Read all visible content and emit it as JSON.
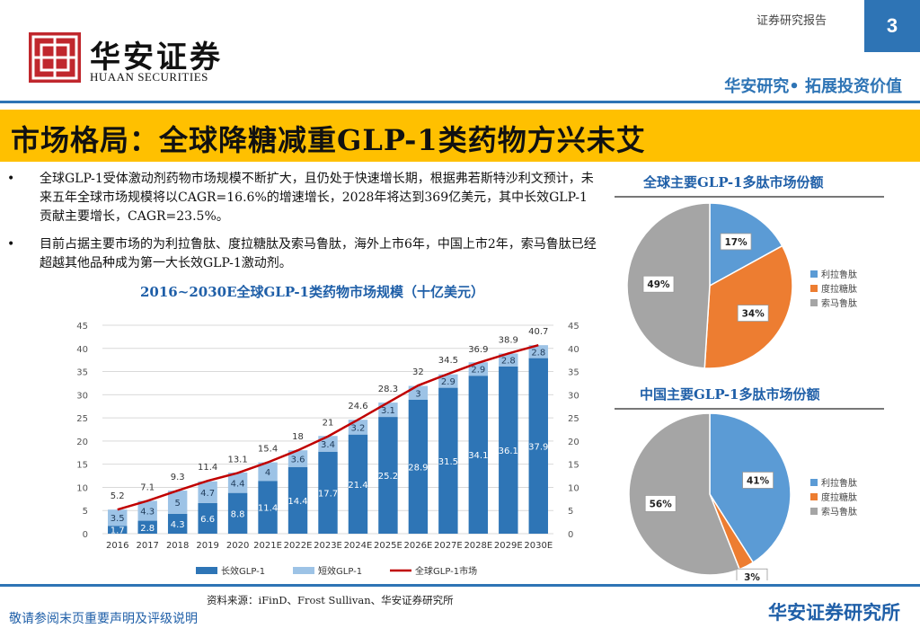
{
  "header": {
    "logo_cn": "华安证券",
    "logo_en": "HUAAN SECURITIES",
    "report_type": "证券研究报告",
    "page_number": "3",
    "slogan": "华安研究• 拓展投资价值",
    "brand_red": "#c0272d",
    "brand_blue": "#2e74b5",
    "accent_yellow": "#ffc000"
  },
  "title": "市场格局：全球降糖减重GLP-1类药物方兴未艾",
  "bullets": [
    "全球GLP-1受体激动剂药物市场规模不断扩大，且仍处于快速增长期，根据弗若斯特沙利文预计，未来五年全球市场规模将以CAGR=16.6%的增速增长，2028年将达到369亿美元，其中长效GLP-1贡献主要增长，CAGR=23.5%。",
    "目前占据主要市场的为利拉鲁肽、度拉糖肽及索马鲁肽，海外上市6年，中国上市2年，索马鲁肽已经超越其他品种成为第一大长效GLP-1激动剂。"
  ],
  "bullet_symbol": "•",
  "source": "资料来源：iFinD、Frost Sullivan、华安证券研究所",
  "footer": {
    "disclaimer": "敬请参阅末页重要声明及评级说明",
    "institute": "华安证券研究所"
  },
  "chart_data": [
    {
      "type": "bar",
      "stacked": true,
      "title": "2016~2030E全球GLP-1类药物市场规模（十亿美元）",
      "categories": [
        "2016",
        "2017",
        "2018",
        "2019",
        "2020",
        "2021E",
        "2022E",
        "2023E",
        "2024E",
        "2025E",
        "2026E",
        "2027E",
        "2028E",
        "2029E",
        "2030E"
      ],
      "series": [
        {
          "name": "长效GLP-1",
          "color": "#2e75b6",
          "values": [
            1.7,
            2.8,
            4.3,
            6.6,
            8.8,
            11.4,
            14.4,
            17.7,
            21.4,
            25.2,
            28.9,
            31.5,
            34.1,
            36.1,
            37.9
          ]
        },
        {
          "name": "短效GLP-1",
          "color": "#9dc3e6",
          "values": [
            3.5,
            4.3,
            5,
            4.7,
            4.4,
            4,
            3.6,
            3.4,
            3.2,
            3.1,
            3,
            2.9,
            2.9,
            2.8,
            2.8
          ]
        },
        {
          "name": "全球GLP-1市场",
          "type": "line",
          "color": "#c00000",
          "values": [
            5.2,
            7.1,
            9.3,
            11.4,
            13.1,
            15.4,
            18,
            21,
            24.6,
            28.3,
            32,
            34.5,
            36.9,
            38.9,
            40.7
          ]
        }
      ],
      "ylim": [
        0,
        45
      ],
      "yticks": [
        0,
        5,
        10,
        15,
        20,
        25,
        30,
        35,
        40,
        45
      ],
      "legend": "bottom",
      "grid": true
    },
    {
      "type": "pie",
      "title": "全球主要GLP-1多肽市场份额",
      "labels": [
        "利拉鲁肽",
        "度拉糖肽",
        "索马鲁肽"
      ],
      "values": [
        17,
        34,
        49
      ],
      "value_labels": [
        "17%",
        "34%",
        "49%"
      ],
      "colors": [
        "#5b9bd5",
        "#ed7d31",
        "#a5a5a5"
      ],
      "legend": "right"
    },
    {
      "type": "pie",
      "title": "中国主要GLP-1多肽市场份额",
      "labels": [
        "利拉鲁肽",
        "度拉糖肽",
        "索马鲁肽"
      ],
      "values": [
        41,
        3,
        56
      ],
      "value_labels": [
        "41%",
        "3%",
        "56%"
      ],
      "colors": [
        "#5b9bd5",
        "#ed7d31",
        "#a5a5a5"
      ],
      "legend": "right"
    }
  ]
}
